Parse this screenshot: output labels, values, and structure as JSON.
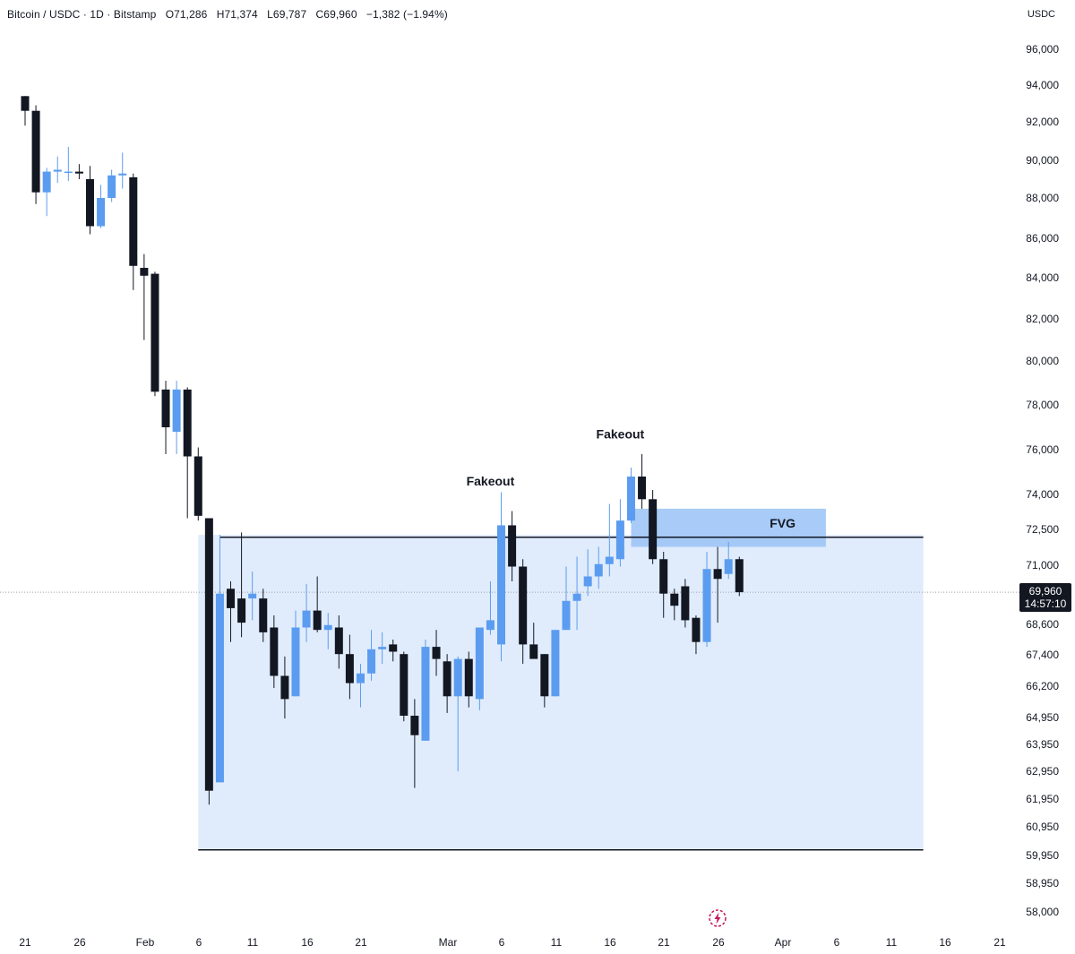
{
  "header": {
    "symbol": "Bitcoin / USDC · 1D · Bitstamp",
    "open": "O71,286",
    "high": "H71,374",
    "low": "L69,787",
    "close": "C69,960",
    "change": "−1,382 (−1.94%)",
    "change_color": "#131722"
  },
  "currency": "USDC",
  "last_price": {
    "price": "69,960",
    "countdown": "14:57:10"
  },
  "colors": {
    "up": "#5b9cf0",
    "down": "#131722",
    "box": "#dbe9fb",
    "fvg": "#9fc5f6"
  },
  "icons": {
    "bolt": "bolt-icon"
  },
  "chart_data": {
    "type": "candlestick",
    "y_axis_labels": [
      "96,000",
      "94,000",
      "92,000",
      "90,000",
      "88,000",
      "86,000",
      "84,000",
      "82,000",
      "80,000",
      "78,000",
      "76,000",
      "74,000",
      "72,500",
      "71,000",
      "68,600",
      "67,400",
      "66,200",
      "64,950",
      "63,950",
      "62,950",
      "61,950",
      "60,950",
      "59,950",
      "58,950",
      "58,000"
    ],
    "x_axis_labels": [
      "21",
      "26",
      "Feb",
      "6",
      "11",
      "16",
      "21",
      "Mar",
      "6",
      "11",
      "16",
      "21",
      "26",
      "Apr",
      "6",
      "11",
      "16",
      "21"
    ],
    "annotations": [
      {
        "text": "Fakeout",
        "date": "2024-03-04",
        "price": 74400
      },
      {
        "text": "Fakeout",
        "date": "2024-03-16",
        "price": 76500
      },
      {
        "text": "FVG",
        "date": "2024-03-31",
        "price": 72600
      }
    ],
    "range_box": {
      "from": "2024-02-06",
      "to": "2024-04-13",
      "top": 72300,
      "bottom": 60200
    },
    "fvg_box": {
      "from": "2024-03-17",
      "to": "2024-04-04",
      "top": 73400,
      "bottom": 71800
    },
    "resistance_line": {
      "from": "2024-02-08",
      "to": "2024-04-13",
      "price": 72200
    },
    "support_line": {
      "from": "2024-02-06",
      "to": "2024-04-13",
      "price": 60200
    },
    "candles": [
      {
        "date": "2024-01-21",
        "o": 93400,
        "h": 93400,
        "l": 91800,
        "c": 92600
      },
      {
        "date": "2024-01-22",
        "o": 92600,
        "h": 92900,
        "l": 87700,
        "c": 88300
      },
      {
        "date": "2024-01-23",
        "o": 88300,
        "h": 89600,
        "l": 87100,
        "c": 89400
      },
      {
        "date": "2024-01-24",
        "o": 89400,
        "h": 90200,
        "l": 88800,
        "c": 89500
      },
      {
        "date": "2024-01-25",
        "o": 89400,
        "h": 90700,
        "l": 88900,
        "c": 89400
      },
      {
        "date": "2024-01-26",
        "o": 89400,
        "h": 89800,
        "l": 89000,
        "c": 89300
      },
      {
        "date": "2024-01-27",
        "o": 89000,
        "h": 89700,
        "l": 86200,
        "c": 86600
      },
      {
        "date": "2024-01-28",
        "o": 86600,
        "h": 88700,
        "l": 86500,
        "c": 88000
      },
      {
        "date": "2024-01-29",
        "o": 88000,
        "h": 89500,
        "l": 87800,
        "c": 89200
      },
      {
        "date": "2024-01-30",
        "o": 89200,
        "h": 90400,
        "l": 88500,
        "c": 89300
      },
      {
        "date": "2024-01-31",
        "o": 89100,
        "h": 89300,
        "l": 83400,
        "c": 84600
      },
      {
        "date": "2024-02-01",
        "o": 84500,
        "h": 85200,
        "l": 81000,
        "c": 84100
      },
      {
        "date": "2024-02-02",
        "o": 84200,
        "h": 84300,
        "l": 78400,
        "c": 78600
      },
      {
        "date": "2024-02-03",
        "o": 78700,
        "h": 79100,
        "l": 75800,
        "c": 77000
      },
      {
        "date": "2024-02-04",
        "o": 76800,
        "h": 79100,
        "l": 75800,
        "c": 78700
      },
      {
        "date": "2024-02-05",
        "o": 78700,
        "h": 78800,
        "l": 73000,
        "c": 75700
      },
      {
        "date": "2024-02-06",
        "o": 75700,
        "h": 76100,
        "l": 72900,
        "c": 73100
      },
      {
        "date": "2024-02-07",
        "o": 73000,
        "h": 73000,
        "l": 61800,
        "c": 62300
      },
      {
        "date": "2024-02-08",
        "o": 62600,
        "h": 72300,
        "l": 62600,
        "c": 69900
      },
      {
        "date": "2024-02-09",
        "o": 70100,
        "h": 70400,
        "l": 67900,
        "c": 69300
      },
      {
        "date": "2024-02-10",
        "o": 69700,
        "h": 72400,
        "l": 68100,
        "c": 68700
      },
      {
        "date": "2024-02-11",
        "o": 69700,
        "h": 70800,
        "l": 68800,
        "c": 69900
      },
      {
        "date": "2024-02-12",
        "o": 69700,
        "h": 70100,
        "l": 67900,
        "c": 68300
      },
      {
        "date": "2024-02-13",
        "o": 68500,
        "h": 69000,
        "l": 66000,
        "c": 66500
      },
      {
        "date": "2024-02-14",
        "o": 66500,
        "h": 67300,
        "l": 64900,
        "c": 65600
      },
      {
        "date": "2024-02-15",
        "o": 65700,
        "h": 69200,
        "l": 65700,
        "c": 68500
      },
      {
        "date": "2024-02-16",
        "o": 68500,
        "h": 70300,
        "l": 67900,
        "c": 69200
      },
      {
        "date": "2024-02-17",
        "o": 69200,
        "h": 70600,
        "l": 68300,
        "c": 68400
      },
      {
        "date": "2024-02-18",
        "o": 68400,
        "h": 69100,
        "l": 67600,
        "c": 68600
      },
      {
        "date": "2024-02-19",
        "o": 68500,
        "h": 69000,
        "l": 66800,
        "c": 67400
      },
      {
        "date": "2024-02-20",
        "o": 67400,
        "h": 68200,
        "l": 65600,
        "c": 66200
      },
      {
        "date": "2024-02-21",
        "o": 66200,
        "h": 67000,
        "l": 65300,
        "c": 66600
      },
      {
        "date": "2024-02-22",
        "o": 66600,
        "h": 68400,
        "l": 66300,
        "c": 67600
      },
      {
        "date": "2024-02-23",
        "o": 67600,
        "h": 68300,
        "l": 67000,
        "c": 67700
      },
      {
        "date": "2024-02-24",
        "o": 67800,
        "h": 68000,
        "l": 67100,
        "c": 67500
      },
      {
        "date": "2024-02-25",
        "o": 67400,
        "h": 67500,
        "l": 64800,
        "c": 65000
      },
      {
        "date": "2024-02-26",
        "o": 65000,
        "h": 65600,
        "l": 62400,
        "c": 64300
      },
      {
        "date": "2024-02-27",
        "o": 64100,
        "h": 68000,
        "l": 64100,
        "c": 67700
      },
      {
        "date": "2024-02-28",
        "o": 67700,
        "h": 68400,
        "l": 66500,
        "c": 67200
      },
      {
        "date": "2024-02-29",
        "o": 67100,
        "h": 67400,
        "l": 65100,
        "c": 65700
      },
      {
        "date": "2024-03-01",
        "o": 65700,
        "h": 67300,
        "l": 63000,
        "c": 67200
      },
      {
        "date": "2024-03-02",
        "o": 67200,
        "h": 67500,
        "l": 65300,
        "c": 65700
      },
      {
        "date": "2024-03-03",
        "o": 65600,
        "h": 68400,
        "l": 65200,
        "c": 68500
      },
      {
        "date": "2024-03-04",
        "o": 68400,
        "h": 70400,
        "l": 68200,
        "c": 68800
      },
      {
        "date": "2024-03-05",
        "o": 67800,
        "h": 74100,
        "l": 67100,
        "c": 72700
      },
      {
        "date": "2024-03-06",
        "o": 72700,
        "h": 73300,
        "l": 70400,
        "c": 71000
      },
      {
        "date": "2024-03-07",
        "o": 71000,
        "h": 71300,
        "l": 67000,
        "c": 67800
      },
      {
        "date": "2024-03-08",
        "o": 67800,
        "h": 68700,
        "l": 67300,
        "c": 67200
      },
      {
        "date": "2024-03-09",
        "o": 67400,
        "h": 67400,
        "l": 65300,
        "c": 65700
      },
      {
        "date": "2024-03-10",
        "o": 65700,
        "h": 68400,
        "l": 65700,
        "c": 68400
      },
      {
        "date": "2024-03-11",
        "o": 68400,
        "h": 71000,
        "l": 68400,
        "c": 69600
      },
      {
        "date": "2024-03-12",
        "o": 69600,
        "h": 71400,
        "l": 68400,
        "c": 69900
      },
      {
        "date": "2024-03-13",
        "o": 70200,
        "h": 71700,
        "l": 69800,
        "c": 70600
      },
      {
        "date": "2024-03-14",
        "o": 70600,
        "h": 71800,
        "l": 70100,
        "c": 71100
      },
      {
        "date": "2024-03-15",
        "o": 71100,
        "h": 73600,
        "l": 70600,
        "c": 71400
      },
      {
        "date": "2024-03-16",
        "o": 71300,
        "h": 73800,
        "l": 71000,
        "c": 72900
      },
      {
        "date": "2024-03-17",
        "o": 72900,
        "h": 75200,
        "l": 72800,
        "c": 74800
      },
      {
        "date": "2024-03-18",
        "o": 74800,
        "h": 75800,
        "l": 73400,
        "c": 73800
      },
      {
        "date": "2024-03-19",
        "o": 73800,
        "h": 74200,
        "l": 71100,
        "c": 71300
      },
      {
        "date": "2024-03-20",
        "o": 71300,
        "h": 71600,
        "l": 68900,
        "c": 69900
      },
      {
        "date": "2024-03-21",
        "o": 69900,
        "h": 70100,
        "l": 68800,
        "c": 69400
      },
      {
        "date": "2024-03-22",
        "o": 70200,
        "h": 70500,
        "l": 68500,
        "c": 68800
      },
      {
        "date": "2024-03-23",
        "o": 68900,
        "h": 69000,
        "l": 67400,
        "c": 67900
      },
      {
        "date": "2024-03-24",
        "o": 67900,
        "h": 71600,
        "l": 67700,
        "c": 70900
      },
      {
        "date": "2024-03-25",
        "o": 70900,
        "h": 71800,
        "l": 68700,
        "c": 70500
      },
      {
        "date": "2024-03-26",
        "o": 70700,
        "h": 72000,
        "l": 70500,
        "c": 71300
      },
      {
        "date": "2024-03-27",
        "o": 71300,
        "h": 71400,
        "l": 69800,
        "c": 69960
      }
    ]
  }
}
